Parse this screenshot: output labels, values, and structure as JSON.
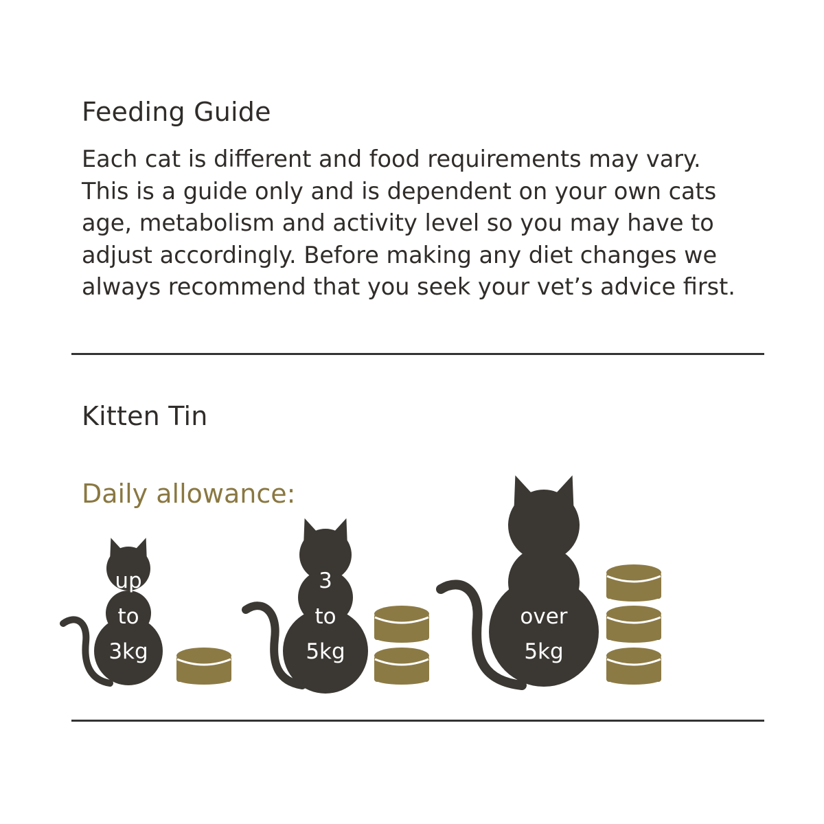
{
  "intro": {
    "title": "Feeding Guide",
    "lines": [
      "Each cat is different and food requirements may vary.",
      "This is a guide only and is dependent on your own cats",
      "age, metabolism and activity level so you may have to",
      "adjust accordingly. Before making any diet changes we",
      "always recommend that you seek your vet’s advice first."
    ]
  },
  "product": {
    "title": "Kitten Tin",
    "allowance_label": "Daily allowance:",
    "groups": [
      {
        "weight_lines": [
          "up",
          "to",
          "3kg"
        ],
        "tins": 1
      },
      {
        "weight_lines": [
          "3",
          "to",
          "5kg"
        ],
        "tins": 2
      },
      {
        "weight_lines": [
          "over",
          "5kg"
        ],
        "tins": 3
      }
    ]
  },
  "colors": {
    "cat": "#3b3833",
    "tin": "#8c7a45",
    "accent_text": "#8a7842",
    "text": "#2f2c29"
  }
}
